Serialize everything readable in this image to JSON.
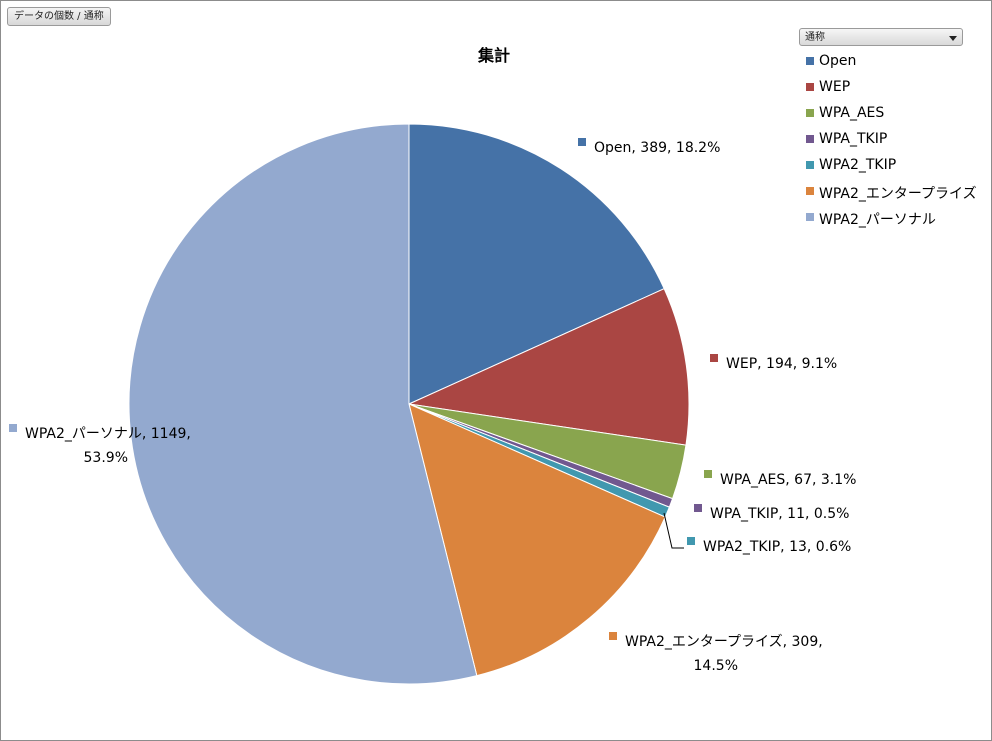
{
  "field_button": {
    "label": "データの個数 / 通称"
  },
  "legend_field": {
    "label": "通称"
  },
  "chart_data": {
    "type": "pie",
    "title": "集計",
    "legend_position": "top-right",
    "slices": [
      {
        "name": "Open",
        "value": 389,
        "percent": "18.2%",
        "color": "#4572a7"
      },
      {
        "name": "WEP",
        "value": 194,
        "percent": "9.1%",
        "color": "#aa4643"
      },
      {
        "name": "WPA_AES",
        "value": 67,
        "percent": "3.1%",
        "color": "#89a54e"
      },
      {
        "name": "WPA_TKIP",
        "value": 11,
        "percent": "0.5%",
        "color": "#71588f"
      },
      {
        "name": "WPA2_TKIP",
        "value": 13,
        "percent": "0.6%",
        "color": "#4198af"
      },
      {
        "name": "WPA2_エンタープライズ",
        "value": 309,
        "percent": "14.5%",
        "color": "#db843d"
      },
      {
        "name": "WPA2_パーソナル",
        "value": 1149,
        "percent": "53.9%",
        "color": "#93a9cf"
      }
    ]
  }
}
